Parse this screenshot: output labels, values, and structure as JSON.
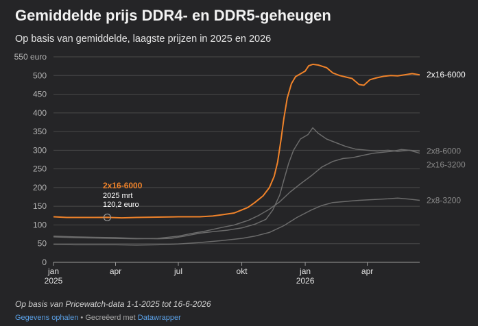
{
  "title": "Gemiddelde prijs DDR4- en DDR5-geheugen",
  "subtitle": "Op basis van gemiddelde, laagste prijzen in 2025 en 2026",
  "notes": "Op basis van Pricewatch-data 1-1-2025 tot 16-6-2026",
  "footer": {
    "get_data": "Gegevens ophalen",
    "separator": "•",
    "created_with": "Gecreëerd met",
    "tool": "Datawrapper"
  },
  "colors": {
    "background": "#252527",
    "highlight": "#f0832a",
    "muted": "#6b6b6b",
    "grid": "#4a4a4a"
  },
  "chart_data": {
    "type": "line",
    "title": "Gemiddelde prijs DDR4- en DDR5-geheugen",
    "subtitle": "Op basis van gemiddelde, laagste prijzen in 2025 en 2026",
    "ylim": [
      0,
      550
    ],
    "y_ticks": [
      0,
      50,
      100,
      150,
      200,
      250,
      300,
      350,
      400,
      450,
      500,
      550
    ],
    "y_tick_labels": [
      "0",
      "50",
      "100",
      "150",
      "200",
      "250",
      "300",
      "350",
      "400",
      "450",
      "500",
      "550 euro"
    ],
    "y_unit": "euro",
    "x_range": [
      "2025-01-01",
      "2026-06-16"
    ],
    "x_ticks": [
      {
        "date": "2025-01-01",
        "label": "jan",
        "sublabel": "2025"
      },
      {
        "date": "2025-04-01",
        "label": "apr",
        "sublabel": ""
      },
      {
        "date": "2025-07-01",
        "label": "jul",
        "sublabel": ""
      },
      {
        "date": "2025-10-01",
        "label": "okt",
        "sublabel": ""
      },
      {
        "date": "2026-01-01",
        "label": "jan",
        "sublabel": "2026"
      },
      {
        "date": "2026-04-01",
        "label": "apr",
        "sublabel": ""
      }
    ],
    "grid": true,
    "annotation": {
      "series": "2x16-6000",
      "title": "2x16-6000",
      "line1": "2025 mrt",
      "line2": "120,2 euro",
      "date": "2025-03-20",
      "value": 120.2
    },
    "series": [
      {
        "name": "2x16-6000",
        "highlight": true,
        "points": [
          [
            "2025-01-01",
            122
          ],
          [
            "2025-01-20",
            120
          ],
          [
            "2025-02-10",
            120
          ],
          [
            "2025-03-01",
            120
          ],
          [
            "2025-03-20",
            120.2
          ],
          [
            "2025-04-10",
            119
          ],
          [
            "2025-05-01",
            120
          ],
          [
            "2025-06-01",
            121
          ],
          [
            "2025-07-01",
            122
          ],
          [
            "2025-08-01",
            122
          ],
          [
            "2025-08-20",
            124
          ],
          [
            "2025-09-01",
            127
          ],
          [
            "2025-09-20",
            132
          ],
          [
            "2025-10-01",
            140
          ],
          [
            "2025-10-10",
            147
          ],
          [
            "2025-10-20",
            160
          ],
          [
            "2025-11-01",
            178
          ],
          [
            "2025-11-10",
            200
          ],
          [
            "2025-11-17",
            230
          ],
          [
            "2025-11-22",
            268
          ],
          [
            "2025-11-27",
            330
          ],
          [
            "2025-12-01",
            385
          ],
          [
            "2025-12-06",
            440
          ],
          [
            "2025-12-12",
            478
          ],
          [
            "2025-12-18",
            497
          ],
          [
            "2026-01-01",
            512
          ],
          [
            "2026-01-06",
            526
          ],
          [
            "2026-01-12",
            530
          ],
          [
            "2026-01-20",
            528
          ],
          [
            "2026-02-01",
            521
          ],
          [
            "2026-02-10",
            507
          ],
          [
            "2026-02-20",
            500
          ],
          [
            "2026-03-01",
            496
          ],
          [
            "2026-03-10",
            492
          ],
          [
            "2026-03-20",
            476
          ],
          [
            "2026-03-27",
            474
          ],
          [
            "2026-04-05",
            489
          ],
          [
            "2026-04-15",
            494
          ],
          [
            "2026-04-25",
            498
          ],
          [
            "2026-05-05",
            500
          ],
          [
            "2026-05-15",
            499
          ],
          [
            "2026-05-25",
            502
          ],
          [
            "2026-06-05",
            505
          ],
          [
            "2026-06-16",
            502
          ]
        ]
      },
      {
        "name": "2x8-6000",
        "highlight": false,
        "points": [
          [
            "2025-01-01",
            70
          ],
          [
            "2025-02-01",
            68
          ],
          [
            "2025-03-01",
            67
          ],
          [
            "2025-04-01",
            66
          ],
          [
            "2025-05-01",
            64
          ],
          [
            "2025-06-01",
            63
          ],
          [
            "2025-06-20",
            64
          ],
          [
            "2025-07-10",
            70
          ],
          [
            "2025-08-01",
            78
          ],
          [
            "2025-08-20",
            82
          ],
          [
            "2025-09-10",
            86
          ],
          [
            "2025-10-01",
            92
          ],
          [
            "2025-10-20",
            102
          ],
          [
            "2025-11-05",
            115
          ],
          [
            "2025-11-15",
            140
          ],
          [
            "2025-11-25",
            180
          ],
          [
            "2025-12-01",
            220
          ],
          [
            "2025-12-08",
            265
          ],
          [
            "2025-12-15",
            300
          ],
          [
            "2025-12-25",
            330
          ],
          [
            "2026-01-05",
            342
          ],
          [
            "2026-01-12",
            360
          ],
          [
            "2026-01-20",
            345
          ],
          [
            "2026-02-01",
            330
          ],
          [
            "2026-02-15",
            320
          ],
          [
            "2026-03-01",
            310
          ],
          [
            "2026-03-15",
            303
          ],
          [
            "2026-04-01",
            300
          ],
          [
            "2026-04-15",
            298
          ],
          [
            "2026-05-01",
            300
          ],
          [
            "2026-05-15",
            297
          ],
          [
            "2026-06-01",
            300
          ],
          [
            "2026-06-16",
            298
          ]
        ]
      },
      {
        "name": "2x16-3200",
        "highlight": false,
        "points": [
          [
            "2025-01-01",
            68
          ],
          [
            "2025-02-01",
            66
          ],
          [
            "2025-03-01",
            65
          ],
          [
            "2025-04-01",
            64
          ],
          [
            "2025-05-01",
            63
          ],
          [
            "2025-06-01",
            64
          ],
          [
            "2025-07-01",
            70
          ],
          [
            "2025-07-20",
            77
          ],
          [
            "2025-08-10",
            84
          ],
          [
            "2025-09-01",
            93
          ],
          [
            "2025-09-20",
            100
          ],
          [
            "2025-10-10",
            112
          ],
          [
            "2025-10-25",
            125
          ],
          [
            "2025-11-10",
            142
          ],
          [
            "2025-11-25",
            162
          ],
          [
            "2025-12-10",
            188
          ],
          [
            "2025-12-25",
            210
          ],
          [
            "2026-01-10",
            232
          ],
          [
            "2026-01-25",
            255
          ],
          [
            "2026-02-10",
            270
          ],
          [
            "2026-02-25",
            278
          ],
          [
            "2026-03-10",
            280
          ],
          [
            "2026-03-25",
            286
          ],
          [
            "2026-04-10",
            292
          ],
          [
            "2026-04-25",
            295
          ],
          [
            "2026-05-10",
            298
          ],
          [
            "2026-05-20",
            302
          ],
          [
            "2026-06-01",
            300
          ],
          [
            "2026-06-16",
            292
          ]
        ]
      },
      {
        "name": "2x8-3200",
        "highlight": false,
        "points": [
          [
            "2025-01-01",
            48
          ],
          [
            "2025-02-01",
            47
          ],
          [
            "2025-03-01",
            47
          ],
          [
            "2025-04-01",
            47
          ],
          [
            "2025-05-01",
            46
          ],
          [
            "2025-06-01",
            47
          ],
          [
            "2025-07-01",
            49
          ],
          [
            "2025-08-01",
            53
          ],
          [
            "2025-09-01",
            58
          ],
          [
            "2025-10-01",
            64
          ],
          [
            "2025-10-20",
            70
          ],
          [
            "2025-11-10",
            80
          ],
          [
            "2025-12-01",
            98
          ],
          [
            "2025-12-20",
            120
          ],
          [
            "2026-01-10",
            140
          ],
          [
            "2026-01-25",
            152
          ],
          [
            "2026-02-10",
            160
          ],
          [
            "2026-03-01",
            163
          ],
          [
            "2026-03-20",
            166
          ],
          [
            "2026-04-10",
            168
          ],
          [
            "2026-05-01",
            170
          ],
          [
            "2026-05-15",
            172
          ],
          [
            "2026-06-01",
            169
          ],
          [
            "2026-06-16",
            166
          ]
        ]
      }
    ]
  }
}
